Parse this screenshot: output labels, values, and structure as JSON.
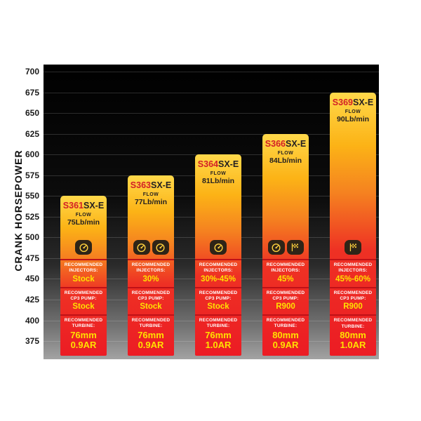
{
  "chart_data": {
    "type": "bar",
    "title": "",
    "ylabel": "CRANK HORSEPOWER",
    "ylim": [
      375,
      700
    ],
    "yticks": [
      700,
      675,
      650,
      625,
      600,
      575,
      550,
      525,
      500,
      475,
      450,
      425,
      400,
      375
    ],
    "grid": true,
    "legend_position": "none",
    "categories": [
      "S361SX-E",
      "S363SX-E",
      "S364SX-E",
      "S366SX-E",
      "S369SX-E"
    ],
    "values": [
      550,
      575,
      600,
      625,
      675
    ],
    "section_labels": {
      "flow": "FLOW",
      "injectors": "RECOMMENDED INJECTORS:",
      "cp3": "RECOMMENDED CP3 PUMP:",
      "turbine": "RECOMMENDED TURBINE:"
    },
    "bars": [
      {
        "model_prefix": "S361",
        "model_suffix": "SX-E",
        "flow": "75Lb/min",
        "top_hp": 550,
        "icons": [
          "gauge"
        ],
        "injectors": "Stock",
        "cp3_pump": "Stock",
        "turbine": [
          "76mm",
          "0.9AR"
        ]
      },
      {
        "model_prefix": "S363",
        "model_suffix": "SX-E",
        "flow": "77Lb/min",
        "top_hp": 575,
        "icons": [
          "gauge",
          "gauge"
        ],
        "injectors": "30%",
        "cp3_pump": "Stock",
        "turbine": [
          "76mm",
          "0.9AR"
        ]
      },
      {
        "model_prefix": "S364",
        "model_suffix": "SX-E",
        "flow": "81Lb/min",
        "top_hp": 600,
        "icons": [
          "gauge"
        ],
        "injectors": "30%-45%",
        "cp3_pump": "Stock",
        "turbine": [
          "76mm",
          "1.0AR"
        ]
      },
      {
        "model_prefix": "S366",
        "model_suffix": "SX-E",
        "flow": "84Lb/min",
        "top_hp": 625,
        "icons": [
          "gauge",
          "flag"
        ],
        "injectors": "45%",
        "cp3_pump": "R900",
        "turbine": [
          "80mm",
          "0.9AR"
        ]
      },
      {
        "model_prefix": "S369",
        "model_suffix": "SX-E",
        "flow": "90Lb/min",
        "top_hp": 675,
        "icons": [
          "flag"
        ],
        "injectors": "45%-60%",
        "cp3_pump": "R900",
        "turbine": [
          "80mm",
          "1.0AR"
        ]
      }
    ]
  },
  "colors": {
    "bar_top": "#ffd84a",
    "bar_mid": "#f58220",
    "bar_bottom": "#ec1c24",
    "model_prefix": "#d31f26",
    "model_suffix": "#231f20",
    "value_yellow": "#ffe100",
    "divider_red": "#bf1117",
    "icon_badge": "#2e2417",
    "icon_glyph": "#ffd23f",
    "plot_bg_top": "#000000",
    "plot_bg_bottom": "#a3a3a3"
  }
}
